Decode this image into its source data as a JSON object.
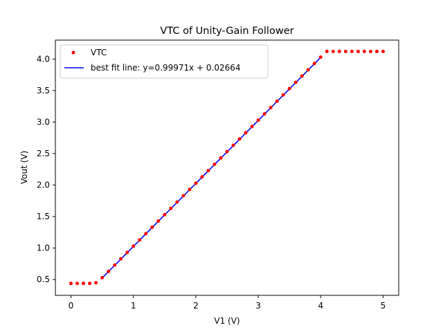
{
  "chart_data": {
    "type": "scatter",
    "title": "VTC of Unity-Gain Follower",
    "xlabel": "V1 (V)",
    "ylabel": "Vout (V)",
    "xlim": [
      -0.25,
      5.25
    ],
    "ylim": [
      0.25,
      4.3
    ],
    "xticks": [
      "0",
      "1",
      "2",
      "3",
      "4",
      "5"
    ],
    "yticks": [
      "0.5",
      "1.0",
      "1.5",
      "2.0",
      "2.5",
      "3.0",
      "3.5",
      "4.0"
    ],
    "grid": false,
    "legend_position": "top-left",
    "series": [
      {
        "name": "VTC",
        "kind": "points",
        "color": "#ff0000",
        "x": [
          0,
          0.1,
          0.2,
          0.3,
          0.4,
          0.5,
          0.6,
          0.7,
          0.8,
          0.9,
          1.0,
          1.1,
          1.2,
          1.3,
          1.4,
          1.5,
          1.6,
          1.7,
          1.8,
          1.9,
          2.0,
          2.1,
          2.2,
          2.3,
          2.4,
          2.5,
          2.6,
          2.7,
          2.8,
          2.9,
          3.0,
          3.1,
          3.2,
          3.3,
          3.4,
          3.5,
          3.6,
          3.7,
          3.8,
          3.9,
          4.0,
          4.1,
          4.2,
          4.3,
          4.4,
          4.5,
          4.6,
          4.7,
          4.8,
          4.9,
          5.0
        ],
        "y": [
          0.44,
          0.44,
          0.44,
          0.44,
          0.45,
          0.53,
          0.63,
          0.73,
          0.83,
          0.93,
          1.03,
          1.13,
          1.23,
          1.33,
          1.43,
          1.53,
          1.63,
          1.73,
          1.83,
          1.93,
          2.03,
          2.13,
          2.23,
          2.33,
          2.43,
          2.53,
          2.63,
          2.73,
          2.83,
          2.93,
          3.03,
          3.13,
          3.23,
          3.33,
          3.43,
          3.53,
          3.63,
          3.73,
          3.83,
          3.93,
          4.03,
          4.12,
          4.12,
          4.12,
          4.12,
          4.12,
          4.12,
          4.12,
          4.12,
          4.12,
          4.12
        ]
      },
      {
        "name": "best fit line: y=0.99971x + 0.02664",
        "kind": "line",
        "color": "#0000ff",
        "x": [
          0.5,
          4.0
        ],
        "y": [
          0.526,
          4.025
        ]
      }
    ]
  }
}
